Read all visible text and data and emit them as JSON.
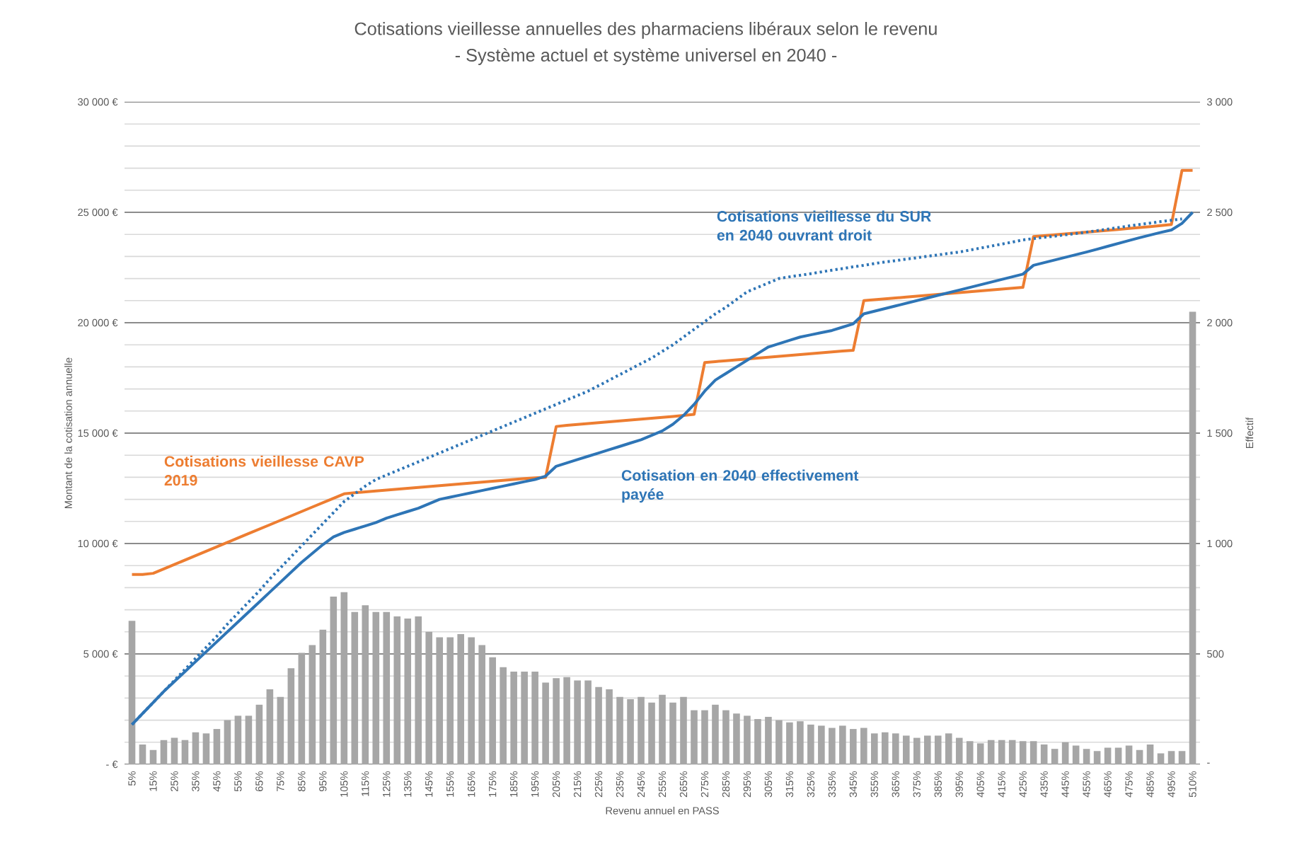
{
  "chart_data": {
    "type": "bar",
    "title": "Cotisations vieillesse annuelles des pharmaciens libéraux selon le revenu",
    "subtitle": "- Système actuel et système universel en 2040 -",
    "xlabel": "Revenu annuel en PASS",
    "ylabel": "Montant de la cotisation annuelle",
    "y2label": "Effectif",
    "categories": [
      "5%",
      null,
      "15%",
      null,
      "25%",
      null,
      "35%",
      null,
      "45%",
      null,
      "55%",
      null,
      "65%",
      null,
      "75%",
      null,
      "85%",
      null,
      "95%",
      null,
      "105%",
      null,
      "115%",
      null,
      "125%",
      null,
      "135%",
      null,
      "145%",
      null,
      "155%",
      null,
      "165%",
      null,
      "175%",
      null,
      "185%",
      null,
      "195%",
      null,
      "205%",
      null,
      "215%",
      null,
      "225%",
      null,
      "235%",
      null,
      "245%",
      null,
      "255%",
      null,
      "265%",
      null,
      "275%",
      null,
      "285%",
      null,
      "295%",
      null,
      "305%",
      null,
      "315%",
      null,
      "325%",
      null,
      "335%",
      null,
      "345%",
      null,
      "355%",
      null,
      "365%",
      null,
      "375%",
      null,
      "385%",
      null,
      "395%",
      null,
      "405%",
      null,
      "415%",
      null,
      "425%",
      null,
      "435%",
      null,
      "445%",
      null,
      "455%",
      null,
      "465%",
      null,
      "475%",
      null,
      "485%",
      null,
      "495%",
      null,
      "510%"
    ],
    "series": [
      {
        "axis": "y2",
        "color": "#a6a6a6",
        "values": [
          650,
          90,
          65,
          110,
          120,
          110,
          145,
          140,
          160,
          200,
          220,
          220,
          270,
          340,
          305,
          435,
          505,
          540,
          610,
          760,
          780,
          690,
          720,
          690,
          690,
          670,
          660,
          670,
          600,
          575,
          575,
          590,
          575,
          540,
          485,
          440,
          420,
          420,
          420,
          370,
          390,
          395,
          380,
          380,
          350,
          340,
          305,
          295,
          305,
          280,
          315,
          280,
          305,
          245,
          245,
          270,
          245,
          230,
          220,
          205,
          215,
          200,
          190,
          195,
          180,
          175,
          165,
          175,
          160,
          165,
          140,
          145,
          140,
          130,
          120,
          130,
          130,
          140,
          120,
          105,
          95,
          110,
          110,
          110,
          105,
          105,
          90,
          70,
          100,
          85,
          70,
          60,
          75,
          75,
          85,
          65,
          90,
          50,
          60,
          60,
          2050
        ]
      },
      {
        "type": "line",
        "name": "Cotisations vieillesse CAVP 2019",
        "color": "#ed7d31",
        "line_style": "solid",
        "values": [
          8600,
          8600,
          8650,
          8850,
          9050,
          9250,
          9450,
          9650,
          9850,
          10050,
          10250,
          10450,
          10650,
          10850,
          11050,
          11250,
          11450,
          11650,
          11850,
          12050,
          12250,
          12300,
          12340,
          12380,
          12420,
          12460,
          12500,
          12540,
          12580,
          12620,
          12660,
          12700,
          12740,
          12780,
          12820,
          12860,
          12900,
          12940,
          12970,
          13000,
          15300,
          15350,
          15390,
          15430,
          15470,
          15510,
          15550,
          15590,
          15630,
          15670,
          15710,
          15750,
          15800,
          15850,
          18200,
          18240,
          18280,
          18320,
          18360,
          18400,
          18440,
          18480,
          18520,
          18560,
          18600,
          18640,
          18680,
          18720,
          18750,
          21000,
          21040,
          21080,
          21120,
          21160,
          21200,
          21240,
          21280,
          21320,
          21360,
          21400,
          21440,
          21480,
          21520,
          21560,
          21600,
          23900,
          23940,
          23980,
          24020,
          24060,
          24100,
          24140,
          24180,
          24220,
          24270,
          24310,
          24350,
          24400,
          24450,
          26900,
          26900
        ]
      },
      {
        "type": "line",
        "name": "Cotisation en 2040 effectivement payée",
        "color": "#2e75b6",
        "line_style": "solid",
        "values": [
          1800,
          2300,
          2800,
          3300,
          3750,
          4200,
          4650,
          5100,
          5550,
          6000,
          6450,
          6900,
          7350,
          7800,
          8250,
          8700,
          9150,
          9550,
          9950,
          10300,
          10500,
          10650,
          10800,
          10950,
          11150,
          11300,
          11450,
          11600,
          11800,
          12000,
          12100,
          12200,
          12300,
          12400,
          12500,
          12600,
          12700,
          12800,
          12900,
          13050,
          13500,
          13650,
          13800,
          13950,
          14100,
          14250,
          14400,
          14550,
          14700,
          14900,
          15100,
          15400,
          15800,
          16300,
          16900,
          17400,
          17700,
          18000,
          18300,
          18600,
          18900,
          19050,
          19200,
          19350,
          19450,
          19550,
          19650,
          19800,
          19950,
          20400,
          20520,
          20640,
          20760,
          20880,
          21000,
          21120,
          21240,
          21360,
          21480,
          21600,
          21720,
          21840,
          21960,
          22080,
          22200,
          22600,
          22720,
          22840,
          22960,
          23080,
          23200,
          23330,
          23460,
          23590,
          23720,
          23850,
          23970,
          24090,
          24200,
          24500,
          25000
        ]
      },
      {
        "type": "line",
        "name": "Cotisations vieillesse du SUR en 2040 ouvrant droit",
        "color": "#2e75b6",
        "line_style": "dotted",
        "values": [
          1800,
          2300,
          2800,
          3300,
          3800,
          4300,
          4800,
          5300,
          5800,
          6350,
          6850,
          7350,
          7850,
          8400,
          8900,
          9400,
          9900,
          10400,
          10900,
          11400,
          11900,
          12250,
          12600,
          12900,
          13100,
          13300,
          13500,
          13700,
          13900,
          14100,
          14300,
          14500,
          14700,
          14900,
          15100,
          15300,
          15500,
          15700,
          15900,
          16100,
          16300,
          16500,
          16700,
          16900,
          17150,
          17400,
          17650,
          17900,
          18150,
          18400,
          18700,
          19000,
          19350,
          19700,
          20050,
          20400,
          20700,
          21050,
          21400,
          21600,
          21800,
          22000,
          22080,
          22150,
          22220,
          22300,
          22380,
          22450,
          22530,
          22600,
          22680,
          22750,
          22810,
          22880,
          22940,
          23010,
          23070,
          23140,
          23200,
          23290,
          23380,
          23470,
          23560,
          23650,
          23750,
          23810,
          23870,
          23920,
          23980,
          24040,
          24100,
          24170,
          24240,
          24310,
          24380,
          24450,
          24510,
          24580,
          24640,
          24700,
          null
        ]
      }
    ],
    "ylim": [
      0,
      30000
    ],
    "yticks": [
      {
        "value": 0,
        "label": "-   €"
      },
      {
        "value": 1000,
        "label": null
      },
      {
        "value": 2000,
        "label": null
      },
      {
        "value": 3000,
        "label": null
      },
      {
        "value": 4000,
        "label": null
      },
      {
        "value": 5000,
        "label": "5 000 €"
      },
      {
        "value": 6000,
        "label": null
      },
      {
        "value": 7000,
        "label": null
      },
      {
        "value": 8000,
        "label": null
      },
      {
        "value": 9000,
        "label": null
      },
      {
        "value": 10000,
        "label": "10 000 €"
      },
      {
        "value": 11000,
        "label": null
      },
      {
        "value": 12000,
        "label": null
      },
      {
        "value": 13000,
        "label": null
      },
      {
        "value": 14000,
        "label": null
      },
      {
        "value": 15000,
        "label": "15 000 €"
      },
      {
        "value": 16000,
        "label": null
      },
      {
        "value": 17000,
        "label": null
      },
      {
        "value": 18000,
        "label": null
      },
      {
        "value": 19000,
        "label": null
      },
      {
        "value": 20000,
        "label": "20 000 €"
      },
      {
        "value": 21000,
        "label": null
      },
      {
        "value": 22000,
        "label": null
      },
      {
        "value": 23000,
        "label": null
      },
      {
        "value": 24000,
        "label": null
      },
      {
        "value": 25000,
        "label": "25 000 €"
      },
      {
        "value": 26000,
        "label": null
      },
      {
        "value": 27000,
        "label": null
      },
      {
        "value": 28000,
        "label": null
      },
      {
        "value": 29000,
        "label": null
      },
      {
        "value": 30000,
        "label": "30 000 €"
      }
    ],
    "y2lim": [
      0,
      3000
    ],
    "y2ticks": [
      {
        "value": 0,
        "label": "-"
      },
      500,
      {
        "value": 1000,
        "label": "1 000"
      },
      {
        "value": 1500,
        "label": "1 500"
      },
      {
        "value": 2000,
        "label": "2 000"
      },
      {
        "value": 2500,
        "label": "2 500"
      },
      {
        "value": 3000,
        "label": "3 000"
      }
    ],
    "grid": "y"
  }
}
